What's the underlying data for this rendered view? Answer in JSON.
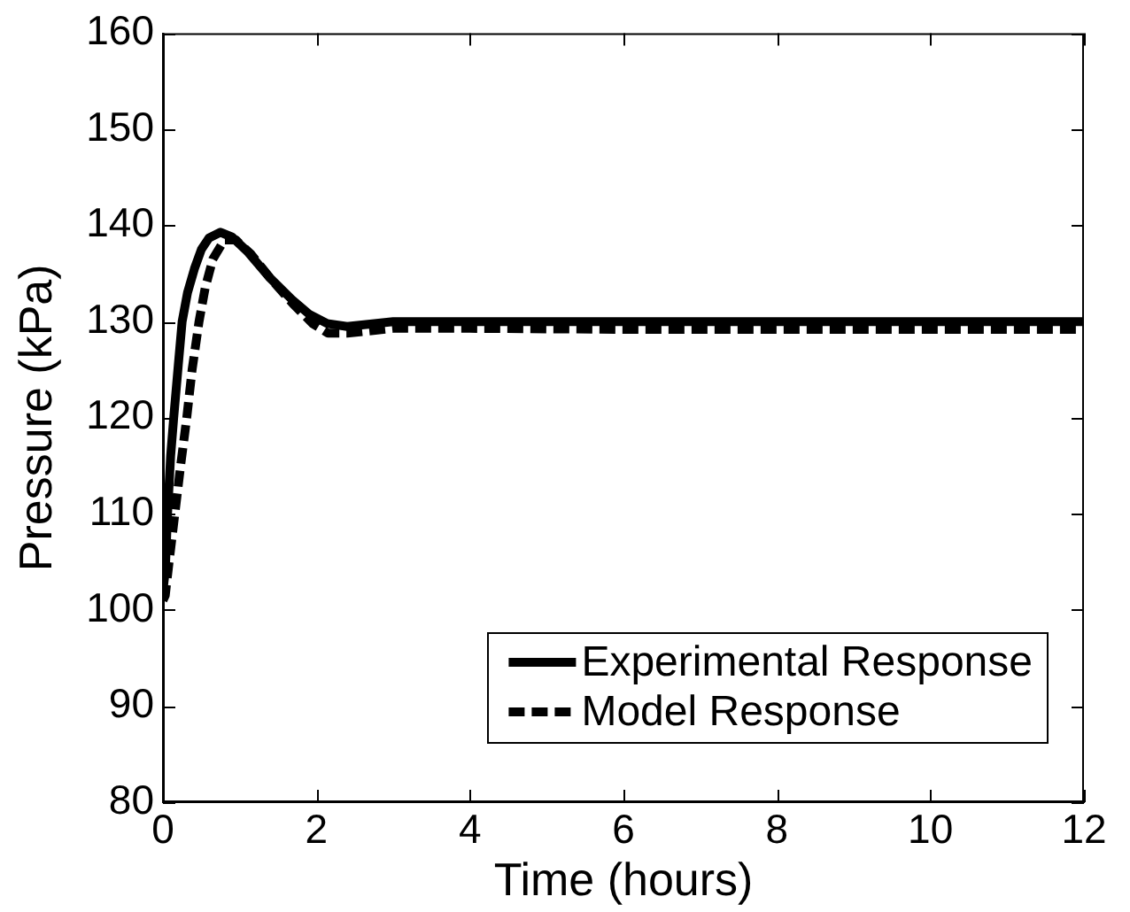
{
  "chart_data": {
    "type": "line",
    "xlabel": "Time (hours)",
    "ylabel": "Pressure (kPa)",
    "xlim": [
      0,
      12
    ],
    "ylim": [
      80,
      160
    ],
    "xticks": [
      0,
      2,
      4,
      6,
      8,
      10,
      12
    ],
    "yticks": [
      80,
      90,
      100,
      110,
      120,
      130,
      140,
      150,
      160
    ],
    "grid": false,
    "legend": "bottom right",
    "marker": "none",
    "series": [
      {
        "name": "Experimental Response",
        "color": "#000000",
        "line_style": "solid",
        "x": [
          0,
          0.03,
          0.06,
          0.1,
          0.14,
          0.2,
          0.25,
          0.32,
          0.41,
          0.5,
          0.6,
          0.75,
          0.9,
          1.1,
          1.4,
          1.68,
          1.9,
          2.14,
          2.4,
          3.0,
          4,
          6,
          8,
          10,
          12
        ],
        "values": [
          102,
          104,
          110,
          116,
          120,
          125.5,
          130,
          133,
          135.5,
          137.5,
          138.7,
          139.3,
          138.8,
          137.3,
          134.5,
          132.3,
          130.8,
          129.8,
          129.5,
          130,
          130,
          130,
          130,
          130,
          130
        ]
      },
      {
        "name": "Model Response",
        "color": "#000000",
        "line_style": "dashed",
        "x": [
          0,
          0.03,
          0.08,
          0.155,
          0.23,
          0.31,
          0.38,
          0.47,
          0.55,
          0.65,
          0.8,
          0.95,
          1.15,
          1.4,
          1.7,
          1.95,
          2.15,
          2.4,
          3.0,
          4,
          6,
          8,
          10,
          12
        ],
        "values": [
          101,
          101.5,
          105,
          110,
          115,
          120,
          125,
          130,
          133.5,
          136.5,
          138.5,
          138.5,
          137,
          134.5,
          131.8,
          129.8,
          128.8,
          128.8,
          129.3,
          129.3,
          129.2,
          129.2,
          129.2,
          129.2
        ]
      }
    ]
  }
}
